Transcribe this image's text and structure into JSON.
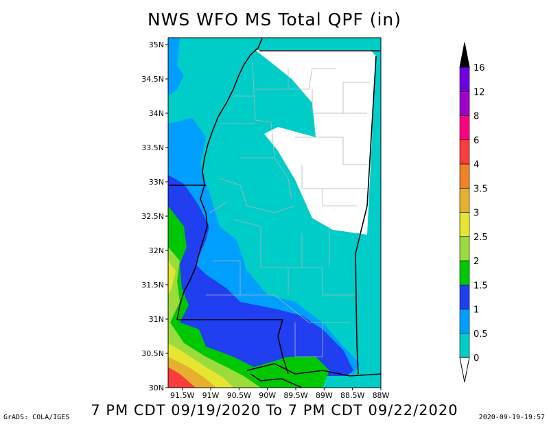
{
  "title": "NWS WFO MS Total QPF (in)",
  "valid_period": "7 PM CDT 09/19/2020 To 7 PM CDT 09/22/2020",
  "credit": "GrADS: COLA/IGES",
  "timestamp": "2020-09-19-19:57",
  "map": {
    "lat_labels": [
      "35N",
      "34.5N",
      "34N",
      "33.5N",
      "33N",
      "32.5N",
      "32N",
      "31.5N",
      "31N",
      "30.5N",
      "30N"
    ],
    "lon_labels": [
      "91.5W",
      "91W",
      "90.5W",
      "90W",
      "89.5W",
      "89W",
      "88.5W",
      "88W"
    ],
    "lat_values": [
      35,
      34.5,
      34,
      33.5,
      33,
      32.5,
      32,
      31.5,
      31,
      30.5,
      30
    ],
    "lon_values": [
      -91.5,
      -91,
      -90.5,
      -90,
      -89.5,
      -89,
      -88.5,
      -88
    ]
  },
  "colorbar": {
    "labels": [
      "0",
      "0.5",
      "1",
      "1.5",
      "2",
      "2.5",
      "3",
      "3.5",
      "4",
      "6",
      "8",
      "12",
      "16"
    ],
    "colors": [
      "#00ccc8",
      "#009fff",
      "#1f3ff0",
      "#00c800",
      "#9bdc3c",
      "#e6e632",
      "#e6af2d",
      "#f08228",
      "#fa3c3c",
      "#ff007f",
      "#a000c8",
      "#7000e0",
      "#000000"
    ]
  }
}
